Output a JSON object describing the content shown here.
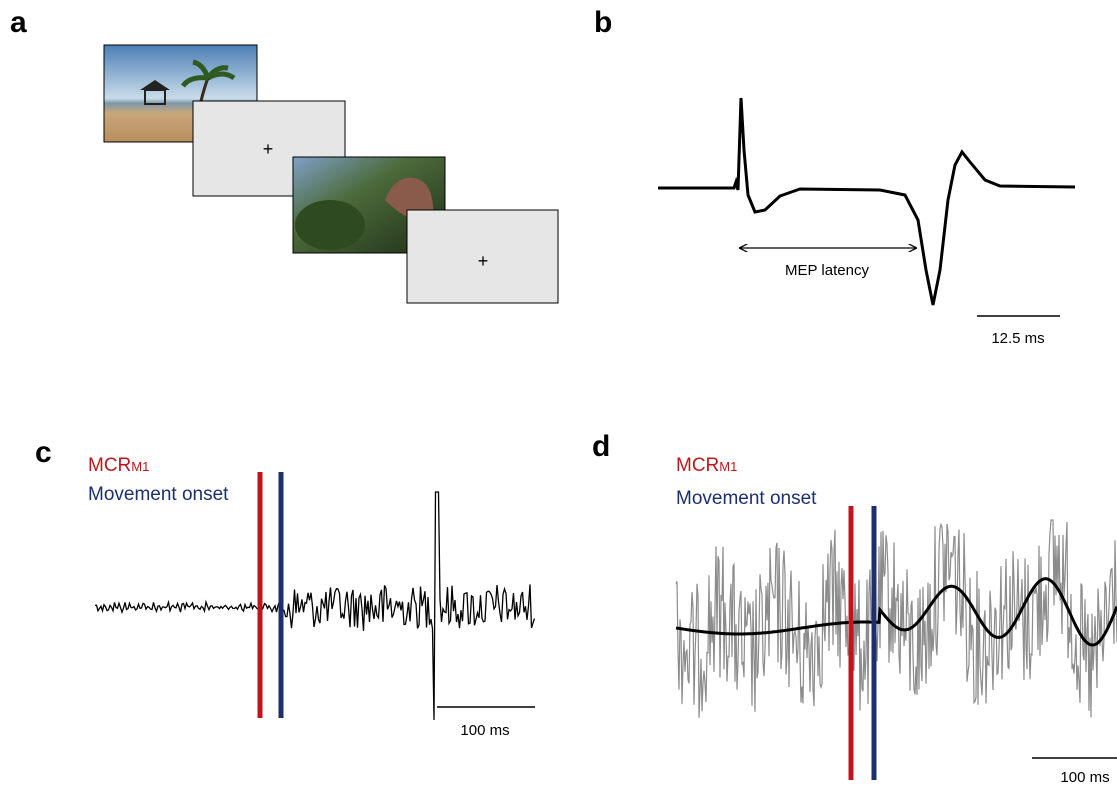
{
  "panels": [
    {
      "label": "a",
      "fixations": [
        "+",
        "+"
      ]
    },
    {
      "label": "b",
      "annotation": "MEP latency",
      "scale_bar": "12.5 ms"
    },
    {
      "label": "c",
      "legend": [
        {
          "text": "MCR",
          "subscript": "M1"
        },
        {
          "text": "Movement onset"
        }
      ],
      "scale_bar": "100 ms"
    },
    {
      "label": "d",
      "legend": [
        {
          "text": "MCR",
          "subscript": "M1"
        },
        {
          "text": "Movement onset"
        }
      ],
      "scale_bar": "100 ms"
    }
  ]
}
